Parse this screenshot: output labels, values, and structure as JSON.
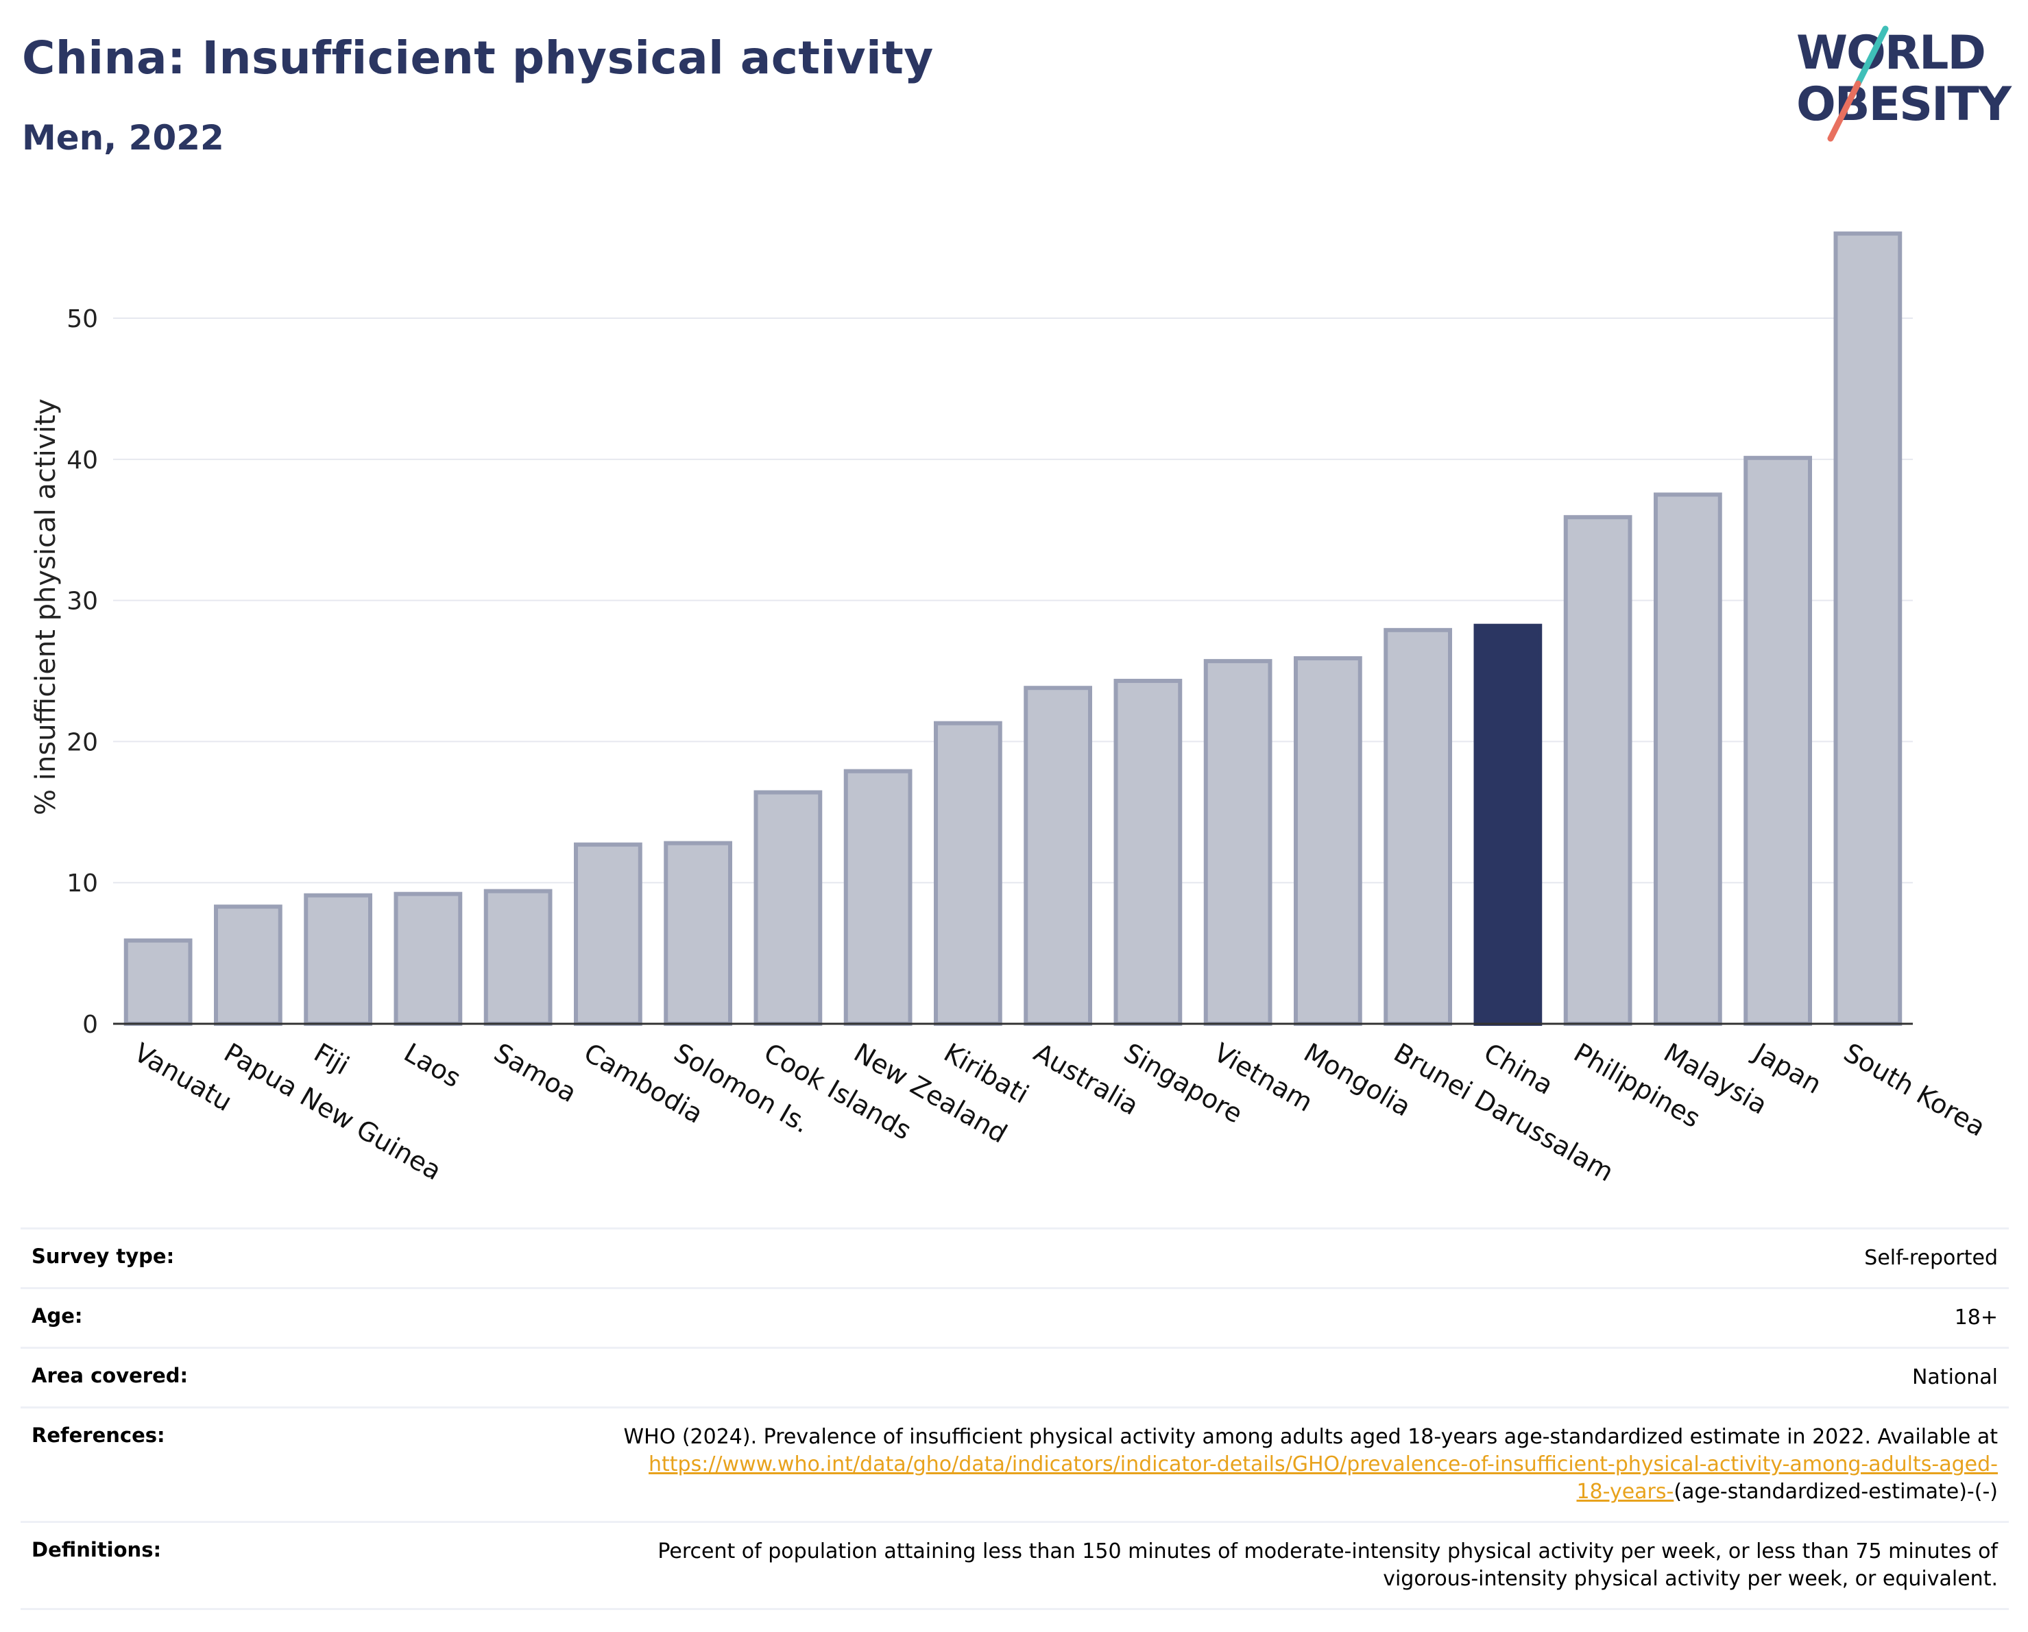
{
  "header": {
    "title": "China: Insufficient physical activity",
    "subtitle": "Men, 2022"
  },
  "logo": {
    "line1": "WORLD",
    "line2": "OBESITY"
  },
  "colors": {
    "brand_navy": "#2b3662",
    "bar_default": "#bfc3cf",
    "bar_default_outline": "#9aa0b6",
    "bar_highlight": "#2b3662",
    "logo_teal": "#3fbfb8",
    "logo_coral": "#e8705f",
    "link": "#e8a21c"
  },
  "chart_data": {
    "type": "bar",
    "ylabel": "% insufficient physical activity",
    "ylim": [
      0,
      57
    ],
    "yticks": [
      0,
      10,
      20,
      30,
      40,
      50
    ],
    "grid": true,
    "highlight": "China",
    "categories": [
      "Vanuatu",
      "Papua New Guinea",
      "Fiji",
      "Laos",
      "Samoa",
      "Cambodia",
      "Solomon Is.",
      "Cook Islands",
      "New Zealand",
      "Kiribati",
      "Australia",
      "Singapore",
      "Vietnam",
      "Mongolia",
      "Brunei Darussalam",
      "China",
      "Philippines",
      "Malaysia",
      "Japan",
      "South Korea"
    ],
    "values": [
      5.9,
      8.3,
      9.1,
      9.2,
      9.4,
      12.7,
      12.8,
      16.4,
      17.9,
      21.3,
      23.8,
      24.3,
      25.7,
      25.9,
      27.9,
      28.2,
      35.9,
      37.5,
      40.1,
      56.0
    ]
  },
  "info": {
    "survey_type": {
      "label": "Survey type:",
      "value": "Self-reported"
    },
    "age": {
      "label": "Age:",
      "value": "18+"
    },
    "area": {
      "label": "Area covered:",
      "value": "National"
    },
    "references": {
      "label": "References:",
      "text": "WHO (2024). Prevalence of insufficient physical activity among adults aged 18-years age-standardized estimate in 2022. Available at",
      "link_line1": "https://www.who.int/data/gho/data/indicators/indicator-details/GHO/prevalence-of-insufficient-physical-activity-among-adults-aged-",
      "link_line2": "18-years-",
      "suffix": "(age-standardized-estimate)-(-)"
    },
    "definitions": {
      "label": "Definitions:",
      "line1": "Percent of population attaining less than 150 minutes of moderate-intensity physical activity per week, or less than 75 minutes of",
      "line2": "vigorous-intensity physical activity per week, or equivalent."
    }
  }
}
